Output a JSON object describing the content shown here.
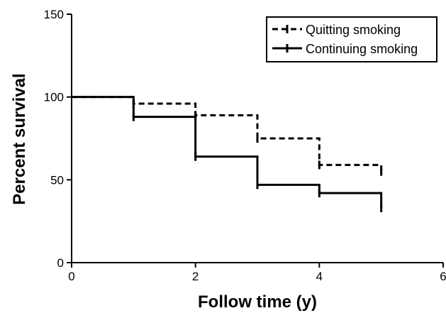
{
  "chart_data": {
    "type": "line",
    "subtype": "kaplan-meier-step",
    "title": "",
    "xlabel": "Follow time (y)",
    "ylabel": "Percent survival",
    "xlim": [
      0,
      6
    ],
    "ylim": [
      0,
      150
    ],
    "xticks": [
      0,
      2,
      4,
      6
    ],
    "yticks": [
      0,
      50,
      100,
      150
    ],
    "grid": false,
    "legend": {
      "position": "top-right",
      "boxed": true
    },
    "series": [
      {
        "name": "Quitting smoking",
        "line_style": "dashed",
        "color": "#000000",
        "step_points": [
          [
            0,
            100
          ],
          [
            1,
            96
          ],
          [
            2,
            89
          ],
          [
            3,
            75
          ],
          [
            4,
            59
          ],
          [
            5,
            55
          ]
        ]
      },
      {
        "name": "Continuing smoking",
        "line_style": "solid",
        "color": "#000000",
        "step_points": [
          [
            0,
            100
          ],
          [
            1,
            88
          ],
          [
            2,
            64
          ],
          [
            3,
            47
          ],
          [
            4,
            42
          ],
          [
            5,
            33
          ]
        ]
      }
    ]
  }
}
